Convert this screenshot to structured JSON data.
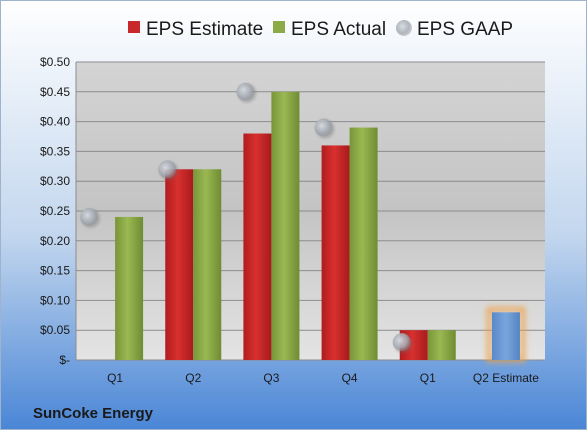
{
  "brand": "SunCoke Energy",
  "colors": {
    "estimate": "#c8282a",
    "actual": "#8caa45",
    "gaap": "#b4b9c2",
    "next_estimate": "#6d9ad4",
    "next_estimate_glow": "#f0a040"
  },
  "chart_data": {
    "type": "bar",
    "categories": [
      "Q1",
      "Q2",
      "Q3",
      "Q4",
      "Q1",
      "Q2 Estimate"
    ],
    "series": [
      {
        "name": "EPS Estimate",
        "values": [
          null,
          0.32,
          0.38,
          0.36,
          0.05,
          null
        ]
      },
      {
        "name": "EPS Actual",
        "values": [
          0.24,
          0.32,
          0.45,
          0.39,
          0.05,
          null
        ]
      },
      {
        "name": "EPS GAAP",
        "values": [
          0.24,
          0.32,
          0.45,
          0.39,
          0.03,
          null
        ]
      }
    ],
    "next_estimate": {
      "category": "Q2 Estimate",
      "value": 0.08
    },
    "ylim": [
      0,
      0.5
    ],
    "yticks": [
      0,
      0.05,
      0.1,
      0.15,
      0.2,
      0.25,
      0.3,
      0.35,
      0.4,
      0.45,
      0.5
    ],
    "ytick_labels": [
      "$-",
      "$0.05",
      "$0.10",
      "$0.15",
      "$0.20",
      "$0.25",
      "$0.30",
      "$0.35",
      "$0.40",
      "$0.45",
      "$0.50"
    ],
    "grid": true,
    "legend_position": "top"
  }
}
